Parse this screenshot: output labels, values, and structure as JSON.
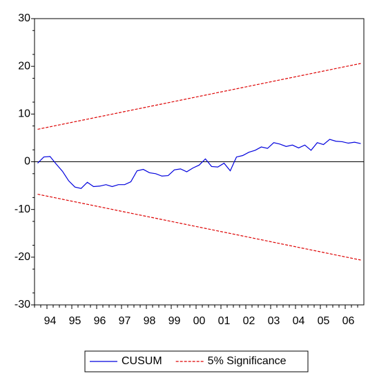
{
  "chart_data": {
    "type": "line",
    "categories": [
      null,
      null,
      "94",
      null,
      null,
      null,
      "95",
      null,
      null,
      null,
      "96",
      null,
      null,
      null,
      "97",
      null,
      null,
      null,
      "98",
      null,
      null,
      null,
      "99",
      null,
      null,
      null,
      "00",
      null,
      null,
      null,
      "01",
      null,
      null,
      null,
      "02",
      null,
      null,
      null,
      "03",
      null,
      null,
      null,
      "04",
      null,
      null,
      null,
      "05",
      null,
      null,
      null,
      "06",
      null,
      null
    ],
    "series": [
      {
        "name": "CUSUM",
        "color": "#0000dd",
        "dash": false,
        "values": [
          -0.3,
          1.0,
          1.1,
          -0.5,
          -2,
          -4,
          -5.3,
          -5.6,
          -4.3,
          -5.2,
          -5.1,
          -4.8,
          -5.2,
          -4.8,
          -4.8,
          -4.2,
          -1.9,
          -1.6,
          -2.3,
          -2.5,
          -3,
          -2.9,
          -1.7,
          -1.5,
          -2.1,
          -1.3,
          -0.7,
          0.6,
          -1,
          -1.1,
          -0.3,
          -1.9,
          1,
          1.3,
          2,
          2.4,
          3.1,
          2.8,
          4,
          3.7,
          3.2,
          3.5,
          2.9,
          3.5,
          2.4,
          4,
          3.6,
          4.7,
          4.3,
          4.2,
          3.9,
          4.1,
          3.8
        ]
      },
      {
        "name": "5% Significance",
        "color": "#dd0000",
        "dash": true,
        "values": [
          6.8,
          7.07,
          7.33,
          7.6,
          7.86,
          8.13,
          8.39,
          8.66,
          8.92,
          9.19,
          9.45,
          9.72,
          9.98,
          10.25,
          10.52,
          10.78,
          11.05,
          11.31,
          11.58,
          11.84,
          12.11,
          12.37,
          12.64,
          12.9,
          13.17,
          13.44,
          13.7,
          13.97,
          14.23,
          14.5,
          14.76,
          15.03,
          15.29,
          15.56,
          15.82,
          16.09,
          16.35,
          16.62,
          16.89,
          17.15,
          17.42,
          17.68,
          17.95,
          18.21,
          18.48,
          18.74,
          19.01,
          19.27,
          19.54,
          19.81,
          20.07,
          20.34,
          20.6
        ],
        "lower_values": [
          -6.8,
          -7.07,
          -7.33,
          -7.6,
          -7.86,
          -8.13,
          -8.39,
          -8.66,
          -8.92,
          -9.19,
          -9.45,
          -9.72,
          -9.98,
          -10.25,
          -10.52,
          -10.78,
          -11.05,
          -11.31,
          -11.58,
          -11.84,
          -12.11,
          -12.37,
          -12.64,
          -12.9,
          -13.17,
          -13.44,
          -13.7,
          -13.97,
          -14.23,
          -14.5,
          -14.76,
          -15.03,
          -15.29,
          -15.56,
          -15.82,
          -16.09,
          -16.35,
          -16.62,
          -16.89,
          -17.15,
          -17.42,
          -17.68,
          -17.95,
          -18.21,
          -18.48,
          -18.74,
          -19.01,
          -19.27,
          -19.54,
          -19.81,
          -20.07,
          -20.34,
          -20.6
        ]
      }
    ],
    "ylim": [
      -30,
      30
    ],
    "yticks": [
      -30,
      -20,
      -10,
      0,
      10,
      20,
      30
    ],
    "zero_line": true,
    "grid": false,
    "legend": "bottom"
  }
}
